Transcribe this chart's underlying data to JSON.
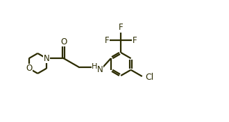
{
  "bg_color": "#ffffff",
  "line_color": "#2b2b00",
  "atom_color": "#2b2b00",
  "line_width": 1.6,
  "font_size": 8.5,
  "fig_width": 3.3,
  "fig_height": 1.76,
  "xlim": [
    0.0,
    9.5
  ],
  "ylim": [
    0.5,
    5.2
  ]
}
